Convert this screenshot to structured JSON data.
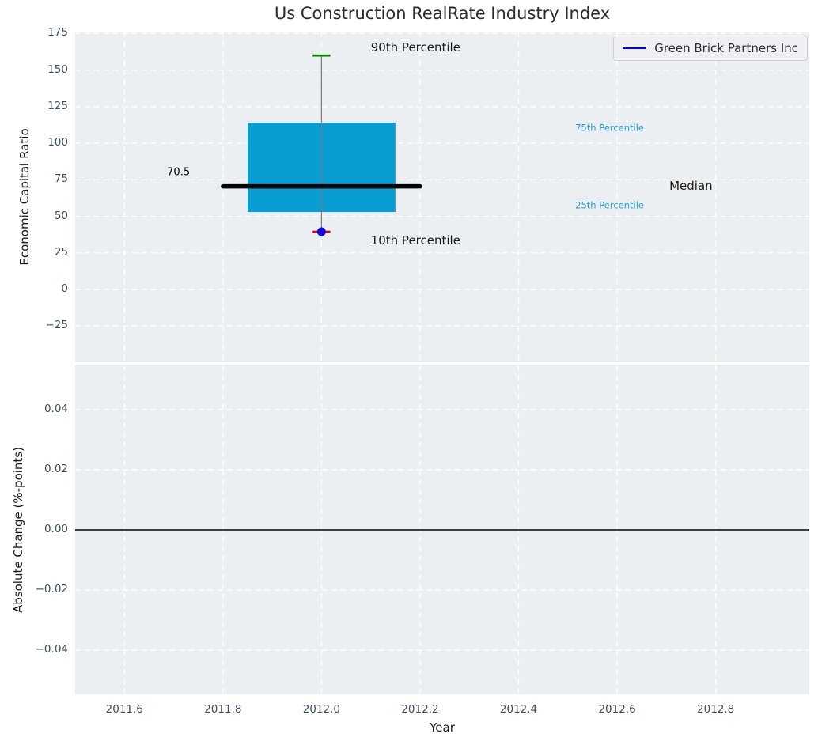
{
  "title": "Us Construction RealRate Industry Index",
  "legend": {
    "label": "Green Brick Partners Inc",
    "line_color": "#0000ee"
  },
  "colors": {
    "panel_bg": "#eceff1",
    "grid": "#ffffff",
    "tick_label": "#3d4c5e",
    "box_fill": "#0a9dd4",
    "median_line": "#000000",
    "whisker": "#7a7a7a",
    "cap_90": "#007f00",
    "cap_10": "#e60000",
    "company_point": "#0b0bdd",
    "zero_line": "#000000"
  },
  "chart_data": [
    {
      "type": "box",
      "title": "Us Construction RealRate Industry Index",
      "ylabel": "Economic Capital Ratio",
      "xlim": [
        2011.5,
        2012.99
      ],
      "ylim": [
        -49.7,
        176.3
      ],
      "grid": true,
      "xticks": [
        2011.6,
        2011.8,
        2012.0,
        2012.2,
        2012.4,
        2012.6,
        2012.8
      ],
      "yticks": [
        175,
        150,
        125,
        100,
        75,
        50,
        25,
        0,
        -25
      ],
      "ytick_labels": [
        "175",
        "150",
        "125",
        "100",
        "75",
        "50",
        "25",
        "0",
        "−25"
      ],
      "legend_position": "upper right",
      "box": {
        "x": 2012.0,
        "p10": 39.5,
        "p25": 53,
        "median": 70.5,
        "p75": 114,
        "p90": 160,
        "box_half_width": 0.15,
        "median_half_width": 0.2,
        "cap_half_width": 0.018
      },
      "company_point": {
        "name": "Green Brick Partners Inc",
        "x": 2012.0,
        "y": 39.5
      },
      "annotations": [
        {
          "text": "90th Percentile",
          "x": 2012.1,
          "y": 165,
          "ha": "left",
          "size": 15,
          "color": "#1a1a1a"
        },
        {
          "text": "75th Percentile",
          "x": 2012.515,
          "y": 110,
          "ha": "left",
          "size": 11.5,
          "color": "#1f9fd0"
        },
        {
          "text": "Median",
          "x": 2012.706,
          "y": 70.5,
          "ha": "left",
          "size": 15,
          "color": "#1a1a1a"
        },
        {
          "text": "25th Percentile",
          "x": 2012.515,
          "y": 57,
          "ha": "left",
          "size": 11.5,
          "color": "#1f9fd0"
        },
        {
          "text": "10th Percentile",
          "x": 2012.1,
          "y": 33,
          "ha": "left",
          "size": 15,
          "color": "#1a1a1a"
        },
        {
          "text": "70.5",
          "x": 2011.733,
          "y": 79.5,
          "ha": "right",
          "size": 13,
          "color": "#000000"
        }
      ]
    },
    {
      "type": "line",
      "ylabel": "Absolute Change (%-points)",
      "xlabel": "Year",
      "xlim": [
        2011.5,
        2012.99
      ],
      "ylim": [
        -0.0547,
        0.0547
      ],
      "grid": true,
      "xticks": [
        2011.6,
        2011.8,
        2012.0,
        2012.2,
        2012.4,
        2012.6,
        2012.8
      ],
      "xtick_labels": [
        "2011.6",
        "2011.8",
        "2012.0",
        "2012.2",
        "2012.4",
        "2012.6",
        "2012.8"
      ],
      "yticks": [
        0.04,
        0.02,
        0,
        -0.02,
        -0.04
      ],
      "ytick_labels": [
        "0.04",
        "0.02",
        "0.00",
        "−0.02",
        "−0.04"
      ],
      "zero_line": 0.0,
      "series": []
    }
  ]
}
